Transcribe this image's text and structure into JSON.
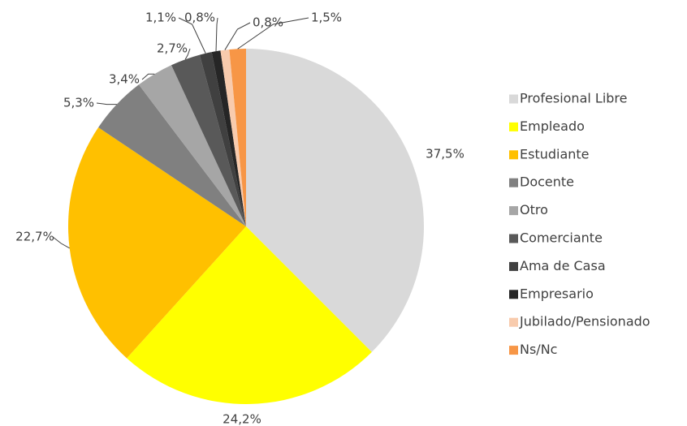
{
  "chart_data": {
    "type": "pie",
    "categories": [
      "Profesional Libre",
      "Empleado",
      "Estudiante",
      "Docente",
      "Otro",
      "Comerciante",
      "Ama de Casa",
      "Empresario",
      "Jubilado/Pensionado",
      "Ns/Nc"
    ],
    "values": [
      37.5,
      24.2,
      22.7,
      5.3,
      3.4,
      2.7,
      1.1,
      0.8,
      0.8,
      1.5
    ],
    "value_labels": [
      "37,5%",
      "24,2%",
      "22,7%",
      "5,3%",
      "3,4%",
      "2,7%",
      "1,1%",
      "0,8%",
      "0,8%",
      "1,5%"
    ],
    "colors": [
      "#d9d9d9",
      "#ffff00",
      "#ffc000",
      "#808080",
      "#a6a6a6",
      "#595959",
      "#404040",
      "#262626",
      "#f8cbad",
      "#f79646"
    ],
    "legend": "right"
  }
}
